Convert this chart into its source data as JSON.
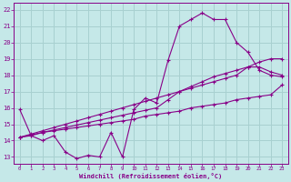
{
  "xlabel": "Windchill (Refroidissement éolien,°C)",
  "bg_color": "#c5e8e8",
  "grid_color": "#a8d0d0",
  "line_color": "#880088",
  "xlim": [
    -0.5,
    23.5
  ],
  "ylim": [
    12.6,
    22.4
  ],
  "yticks": [
    13,
    14,
    15,
    16,
    17,
    18,
    19,
    20,
    21,
    22
  ],
  "xticks": [
    0,
    1,
    2,
    3,
    4,
    5,
    6,
    7,
    8,
    9,
    10,
    11,
    12,
    13,
    14,
    15,
    16,
    17,
    18,
    19,
    20,
    21,
    22,
    23
  ],
  "line1_x": [
    0,
    1,
    2,
    3,
    4,
    5,
    6,
    7,
    8,
    9,
    10,
    11,
    12,
    13,
    14,
    15,
    16,
    17,
    18,
    19,
    20,
    21,
    22,
    23
  ],
  "line1_y": [
    15.9,
    14.3,
    14.0,
    14.3,
    13.3,
    12.9,
    13.1,
    13.0,
    14.5,
    13.0,
    15.9,
    16.6,
    16.3,
    18.9,
    21.0,
    21.4,
    21.8,
    21.4,
    21.4,
    20.0,
    19.4,
    18.3,
    18.0,
    17.9
  ],
  "line2_x": [
    0,
    1,
    2,
    3,
    4,
    5,
    6,
    7,
    8,
    9,
    10,
    11,
    12,
    13,
    14,
    15,
    16,
    17,
    18,
    19,
    20,
    21,
    22,
    23
  ],
  "line2_y": [
    14.2,
    14.3,
    14.5,
    14.6,
    14.7,
    14.8,
    14.9,
    15.0,
    15.1,
    15.2,
    15.3,
    15.5,
    15.6,
    15.7,
    15.8,
    16.0,
    16.1,
    16.2,
    16.3,
    16.5,
    16.6,
    16.7,
    16.8,
    17.4
  ],
  "line3_x": [
    0,
    1,
    2,
    3,
    4,
    5,
    6,
    7,
    8,
    9,
    10,
    11,
    12,
    13,
    14,
    15,
    16,
    17,
    18,
    19,
    20,
    21,
    22,
    23
  ],
  "line3_y": [
    14.2,
    14.4,
    14.6,
    14.8,
    15.0,
    15.2,
    15.4,
    15.6,
    15.8,
    16.0,
    16.2,
    16.4,
    16.6,
    16.8,
    17.0,
    17.2,
    17.4,
    17.6,
    17.8,
    18.0,
    18.5,
    18.8,
    19.0,
    19.0
  ],
  "line4_x": [
    0,
    1,
    2,
    3,
    4,
    5,
    6,
    7,
    8,
    9,
    10,
    11,
    12,
    13,
    14,
    15,
    16,
    17,
    18,
    19,
    20,
    21,
    22,
    23
  ],
  "line4_y": [
    14.2,
    14.35,
    14.5,
    14.65,
    14.8,
    14.95,
    15.1,
    15.25,
    15.4,
    15.55,
    15.7,
    15.85,
    16.0,
    16.5,
    17.0,
    17.3,
    17.6,
    17.9,
    18.1,
    18.3,
    18.5,
    18.5,
    18.2,
    18.0
  ]
}
